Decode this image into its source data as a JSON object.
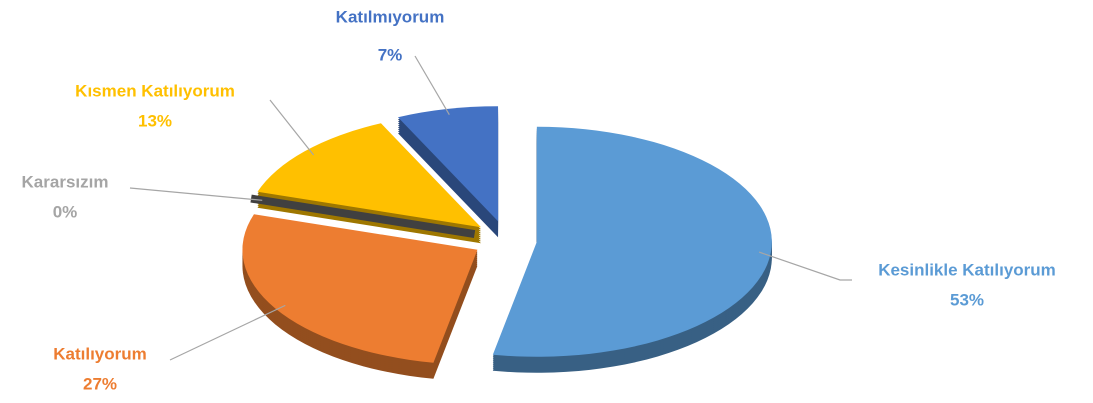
{
  "chart_data": {
    "type": "pie",
    "categories": [
      "Kesinlikle Katılıyorum",
      "Katılıyorum",
      "Kararsızım",
      "Kısmen Katılıyorum",
      "Katılmıyorum"
    ],
    "values": [
      53,
      27,
      0,
      13,
      7
    ],
    "value_labels": [
      "53%",
      "27%",
      "0%",
      "13%",
      "7%"
    ],
    "colors": [
      "#5b9bd5",
      "#ed7d31",
      "#a5a5a5",
      "#ffc000",
      "#4472c4"
    ]
  }
}
